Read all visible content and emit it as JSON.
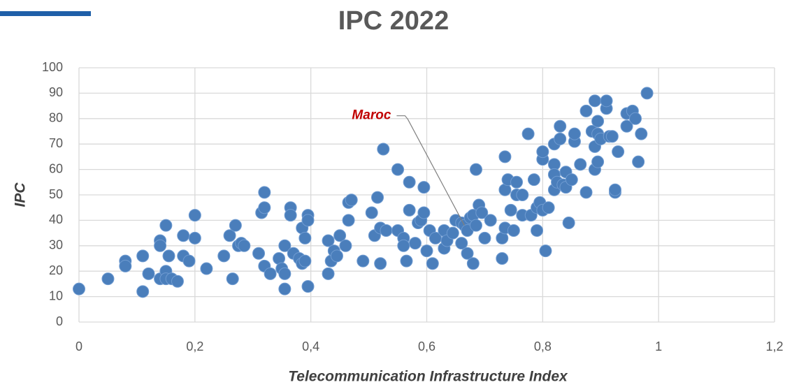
{
  "chart_data": {
    "type": "scatter",
    "title": "IPC 2022",
    "x_label": "Telecommunication Infrastructure Index",
    "y_label": "IPC",
    "color": "#4a7ebb",
    "grid": true,
    "xlim": [
      0,
      1.2
    ],
    "xticks": [
      0,
      {
        "value": 0.2,
        "label": "0,2"
      },
      {
        "value": 0.4,
        "label": "0,4"
      },
      {
        "value": 0.6,
        "label": "0,6"
      },
      {
        "value": 0.8,
        "label": "0,8"
      },
      1,
      {
        "value": 1.2,
        "label": "1,2"
      }
    ],
    "ylim": [
      0,
      100
    ],
    "yticks": [
      0,
      10,
      20,
      30,
      40,
      50,
      60,
      70,
      80,
      90,
      100
    ],
    "x": [
      0,
      0.05,
      0.08,
      0.08,
      0.11,
      0.11,
      0.12,
      0.14,
      0.14,
      0.14,
      0.15,
      0.15,
      0.15,
      0.155,
      0.16,
      0.17,
      0.18,
      0.18,
      0.19,
      0.2,
      0.2,
      0.22,
      0.25,
      0.26,
      0.265,
      0.27,
      0.275,
      0.28,
      0.285,
      0.31,
      0.315,
      0.32,
      0.32,
      0.32,
      0.33,
      0.345,
      0.35,
      0.355,
      0.355,
      0.355,
      0.365,
      0.365,
      0.37,
      0.38,
      0.385,
      0.385,
      0.39,
      0.39,
      0.395,
      0.395,
      0.395,
      0.43,
      0.43,
      0.435,
      0.44,
      0.445,
      0.45,
      0.46,
      0.465,
      0.465,
      0.47,
      0.49,
      0.505,
      0.51,
      0.515,
      0.52,
      0.52,
      0.525,
      0.53,
      0.55,
      0.55,
      0.56,
      0.56,
      0.565,
      0.57,
      0.57,
      0.58,
      0.585,
      0.59,
      0.595,
      0.595,
      0.6,
      0.605,
      0.61,
      0.615,
      0.63,
      0.63,
      0.635,
      0.645,
      0.65,
      0.66,
      0.66,
      0.665,
      0.67,
      0.67,
      0.675,
      0.68,
      0.68,
      0.685,
      0.685,
      0.69,
      0.695,
      0.7,
      0.71,
      0.73,
      0.73,
      0.735,
      0.735,
      0.735,
      0.74,
      0.745,
      0.75,
      0.755,
      0.755,
      0.765,
      0.765,
      0.775,
      0.78,
      0.785,
      0.79,
      0.79,
      0.795,
      0.8,
      0.8,
      0.8,
      0.805,
      0.81,
      0.82,
      0.82,
      0.82,
      0.82,
      0.825,
      0.83,
      0.83,
      0.835,
      0.84,
      0.84,
      0.845,
      0.85,
      0.855,
      0.855,
      0.865,
      0.875,
      0.875,
      0.885,
      0.89,
      0.89,
      0.89,
      0.895,
      0.895,
      0.895,
      0.9,
      0.91,
      0.91,
      0.915,
      0.92,
      0.925,
      0.925,
      0.93,
      0.945,
      0.945,
      0.955,
      0.96,
      0.965,
      0.97,
      0.98
    ],
    "values": [
      13,
      17,
      24,
      22,
      12,
      26,
      19,
      17,
      32,
      30,
      38,
      20,
      17,
      26,
      17,
      16,
      34,
      26,
      24,
      42,
      33,
      21,
      26,
      34,
      17,
      38,
      30,
      31,
      30,
      27,
      43,
      51,
      45,
      22,
      19,
      25,
      21,
      30,
      19,
      13,
      45,
      42,
      27,
      25,
      37,
      23,
      24,
      33,
      42,
      40,
      14,
      32,
      19,
      24,
      28,
      26,
      34,
      30,
      40,
      47,
      48,
      24,
      43,
      34,
      49,
      37,
      23,
      68,
      36,
      60,
      36,
      33,
      30,
      24,
      44,
      55,
      31,
      39,
      40,
      53,
      43,
      28,
      36,
      23,
      33,
      36,
      29,
      32,
      35,
      40,
      39,
      31,
      38,
      27,
      36,
      41,
      23,
      42,
      60,
      38,
      46,
      43,
      33,
      40,
      33,
      25,
      37,
      65,
      52,
      56,
      44,
      36,
      55,
      50,
      50,
      42,
      74,
      42,
      56,
      45,
      36,
      47,
      44,
      64,
      67,
      28,
      45,
      70,
      62,
      58,
      52,
      55,
      77,
      72,
      54,
      59,
      53,
      39,
      56,
      71,
      74,
      62,
      51,
      83,
      75,
      87,
      69,
      60,
      63,
      74,
      79,
      72,
      84,
      87,
      73,
      73,
      51,
      52,
      67,
      77,
      82,
      83,
      80,
      63,
      74,
      90
    ],
    "annotation": {
      "text": "Maroc",
      "x": 0.665,
      "y": 38
    }
  }
}
